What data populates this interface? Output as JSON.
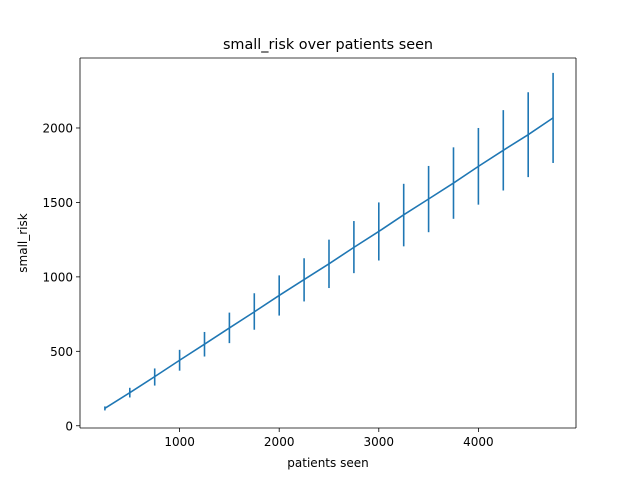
{
  "chart_data": {
    "type": "line",
    "title": "small_risk over patients seen",
    "xlabel": "patients seen",
    "ylabel": "small_risk",
    "xlim": [
      0,
      4980
    ],
    "ylim": [
      -15,
      2470
    ],
    "xticks": [
      1000,
      2000,
      3000,
      4000
    ],
    "yticks": [
      0,
      500,
      1000,
      1500,
      2000
    ],
    "grid": false,
    "legend": "none",
    "color": "#1f77b4",
    "series": [
      {
        "x": [
          250,
          500,
          750,
          1000,
          1250,
          1500,
          1750,
          2000,
          2250,
          2500,
          2750,
          3000,
          3250,
          3500,
          3750,
          4000,
          4250,
          4500,
          4750
        ],
        "y": [
          117,
          222,
          330,
          440,
          548,
          657,
          765,
          875,
          982,
          1088,
          1198,
          1305,
          1417,
          1523,
          1630,
          1742,
          1850,
          1955,
          2068
        ],
        "err_low": [
          103,
          190,
          270,
          370,
          465,
          555,
          645,
          740,
          835,
          925,
          1025,
          1110,
          1205,
          1300,
          1390,
          1485,
          1580,
          1670,
          1765
        ],
        "err_high": [
          130,
          255,
          385,
          510,
          630,
          760,
          890,
          1010,
          1125,
          1250,
          1375,
          1500,
          1625,
          1745,
          1870,
          2000,
          2120,
          2240,
          2370
        ]
      }
    ]
  }
}
